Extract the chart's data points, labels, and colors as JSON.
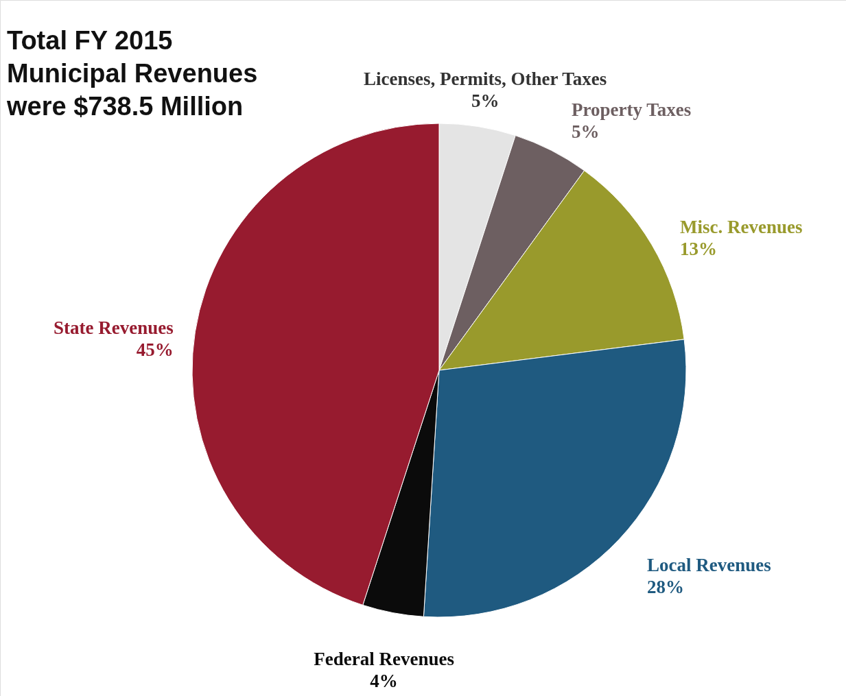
{
  "chart_data": {
    "type": "pie",
    "title": "Total FY 2015\nMunicipal Revenues\nwere $738.5 Million",
    "categories": [
      "Licenses, Permits, Other Taxes",
      "Property Taxes",
      "Misc. Revenues",
      "Local Revenues",
      "Federal Revenues",
      "State Revenues"
    ],
    "values": [
      5,
      5,
      13,
      28,
      4,
      45
    ],
    "colors": [
      "#e4e4e4",
      "#6d5f61",
      "#999a2c",
      "#1f5a80",
      "#0b0b0b",
      "#971b2f"
    ],
    "value_labels": [
      "5%",
      "5%",
      "13%",
      "28%",
      "4%",
      "45%"
    ],
    "data_labels": true
  }
}
